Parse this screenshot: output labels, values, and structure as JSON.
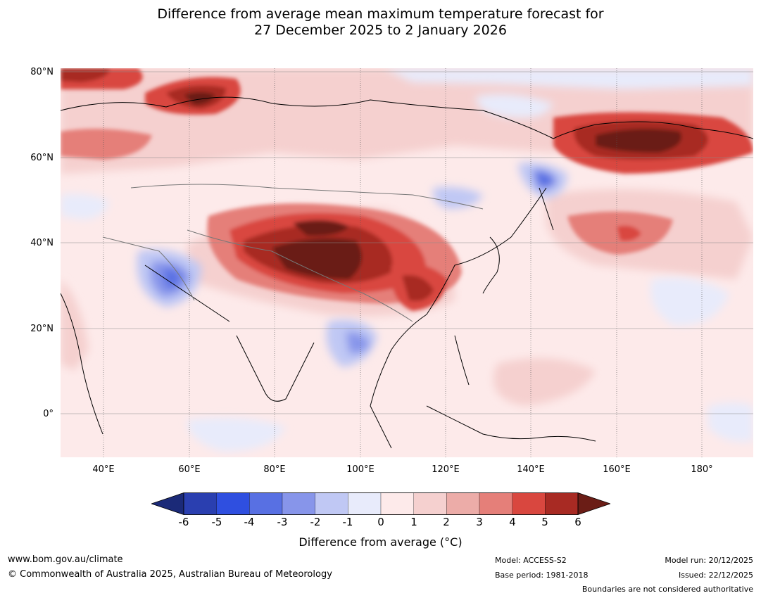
{
  "title": {
    "line1": "Difference from average mean maximum temperature forecast for",
    "line2": "27 December 2025 to 2 January 2026"
  },
  "map": {
    "lat_labels": [
      "80°N",
      "60°N",
      "40°N",
      "20°N",
      "0°"
    ],
    "lon_labels": [
      "40°E",
      "60°E",
      "80°E",
      "100°E",
      "120°E",
      "140°E",
      "160°E",
      "180°"
    ]
  },
  "colorbar": {
    "ticks": [
      "-6",
      "-5",
      "-4",
      "-3",
      "-2",
      "-1",
      "0",
      "1",
      "2",
      "3",
      "4",
      "5",
      "6"
    ],
    "colors": [
      "#1b2a78",
      "#2a3fb0",
      "#2f4fe0",
      "#5870e3",
      "#8795ea",
      "#c0c8f4",
      "#e8ebfb",
      "#fdeaea",
      "#f5d0cf",
      "#ecaca8",
      "#e57f79",
      "#d9473f",
      "#a82a23",
      "#6b1d16"
    ],
    "label": "Difference from average (°C)"
  },
  "footer": {
    "url": "www.bom.gov.au/climate",
    "copyright": "© Commonwealth of Australia 2025, Australian Bureau of Meteorology",
    "model": "Model: ACCESS-S2",
    "base_period": "Base period: 1981-2018",
    "model_run": "Model run: 20/12/2025",
    "issued": "Issued: 22/12/2025",
    "disclaimer": "Boundaries are not considered authoritative"
  }
}
